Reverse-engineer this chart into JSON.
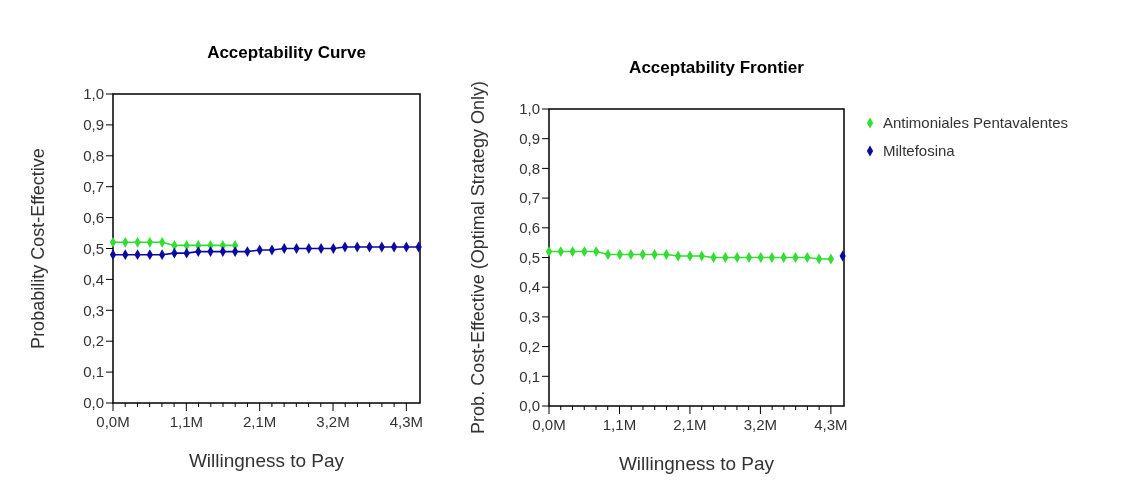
{
  "chart_data": [
    {
      "type": "line",
      "title": "Acceptability Curve",
      "xlabel": "Willingness to Pay",
      "ylabel": "Probability Cost-Effective",
      "marker": "diamond",
      "legend": false,
      "x": [
        0,
        0.18,
        0.36,
        0.54,
        0.72,
        0.9,
        1.08,
        1.25,
        1.43,
        1.61,
        1.79,
        1.97,
        2.15,
        2.33,
        2.51,
        2.69,
        2.87,
        3.05,
        3.23,
        3.4,
        3.58,
        3.76,
        3.94,
        4.12,
        4.3,
        4.48
      ],
      "series": [
        {
          "color": "#33dd33",
          "values": [
            0.52,
            0.52,
            0.52,
            0.52,
            0.52,
            0.51,
            0.51,
            0.51,
            0.51,
            0.51,
            0.51,
            null,
            null,
            null,
            null,
            null,
            null,
            null,
            null,
            null,
            null,
            null,
            null,
            null,
            null,
            null
          ]
        },
        {
          "color": "#0a0aa0",
          "values": [
            0.48,
            0.48,
            0.48,
            0.48,
            0.48,
            0.485,
            0.485,
            0.49,
            0.49,
            0.49,
            0.49,
            0.49,
            0.495,
            0.495,
            0.5,
            0.5,
            0.5,
            0.5,
            0.5,
            0.505,
            0.505,
            0.505,
            0.505,
            0.505,
            0.505,
            0.505
          ]
        }
      ],
      "xlim": [
        0,
        4.5
      ],
      "ylim": [
        0,
        1
      ],
      "xticks": [
        {
          "value": 0,
          "label": "0,0M"
        },
        {
          "value": 1.075,
          "label": "1,1M"
        },
        {
          "value": 2.15,
          "label": "2,1M"
        },
        {
          "value": 3.225,
          "label": "3,2M"
        },
        {
          "value": 4.3,
          "label": "4,3M"
        }
      ],
      "yticks": [
        {
          "value": 0,
          "label": "0,0"
        },
        {
          "value": 0.1,
          "label": "0,1"
        },
        {
          "value": 0.2,
          "label": "0,2"
        },
        {
          "value": 0.3,
          "label": "0,3"
        },
        {
          "value": 0.4,
          "label": "0,4"
        },
        {
          "value": 0.5,
          "label": "0,5"
        },
        {
          "value": 0.6,
          "label": "0,6"
        },
        {
          "value": 0.7,
          "label": "0,7"
        },
        {
          "value": 0.8,
          "label": "0,8"
        },
        {
          "value": 0.9,
          "label": "0,9"
        },
        {
          "value": 1,
          "label": "1,0"
        }
      ]
    },
    {
      "type": "line",
      "title": "Acceptability Frontier",
      "xlabel": "Willingness to Pay",
      "ylabel": "Prob. Cost-Effective (Optimal Strategy Only)",
      "marker": "diamond",
      "legend": "right",
      "x": [
        0,
        0.18,
        0.36,
        0.54,
        0.72,
        0.9,
        1.08,
        1.25,
        1.43,
        1.61,
        1.79,
        1.97,
        2.15,
        2.33,
        2.51,
        2.69,
        2.87,
        3.05,
        3.23,
        3.4,
        3.58,
        3.76,
        3.94,
        4.12,
        4.3,
        4.48
      ],
      "series": [
        {
          "name": "Antimoniales Pentavalentes",
          "color": "#33dd33",
          "values": [
            0.52,
            0.52,
            0.52,
            0.52,
            0.52,
            0.51,
            0.51,
            0.51,
            0.51,
            0.51,
            0.51,
            0.505,
            0.505,
            0.505,
            0.5,
            0.5,
            0.5,
            0.5,
            0.5,
            0.5,
            0.5,
            0.5,
            0.5,
            0.495,
            0.495,
            null
          ]
        },
        {
          "name": "Miltefosina",
          "color": "#0a0aa0",
          "values": [
            null,
            null,
            null,
            null,
            null,
            null,
            null,
            null,
            null,
            null,
            null,
            null,
            null,
            null,
            null,
            null,
            null,
            null,
            null,
            null,
            null,
            null,
            null,
            null,
            null,
            0.505
          ]
        }
      ],
      "xlim": [
        0,
        4.5
      ],
      "ylim": [
        0,
        1
      ],
      "xticks": [
        {
          "value": 0,
          "label": "0,0M"
        },
        {
          "value": 1.075,
          "label": "1,1M"
        },
        {
          "value": 2.15,
          "label": "2,1M"
        },
        {
          "value": 3.225,
          "label": "3,2M"
        },
        {
          "value": 4.3,
          "label": "4,3M"
        }
      ],
      "yticks": [
        {
          "value": 0,
          "label": "0,0"
        },
        {
          "value": 0.1,
          "label": "0,1"
        },
        {
          "value": 0.2,
          "label": "0,2"
        },
        {
          "value": 0.3,
          "label": "0,3"
        },
        {
          "value": 0.4,
          "label": "0,4"
        },
        {
          "value": 0.5,
          "label": "0,5"
        },
        {
          "value": 0.6,
          "label": "0,6"
        },
        {
          "value": 0.7,
          "label": "0,7"
        },
        {
          "value": 0.8,
          "label": "0,8"
        },
        {
          "value": 0.9,
          "label": "0,9"
        },
        {
          "value": 1,
          "label": "1,0"
        }
      ]
    }
  ]
}
